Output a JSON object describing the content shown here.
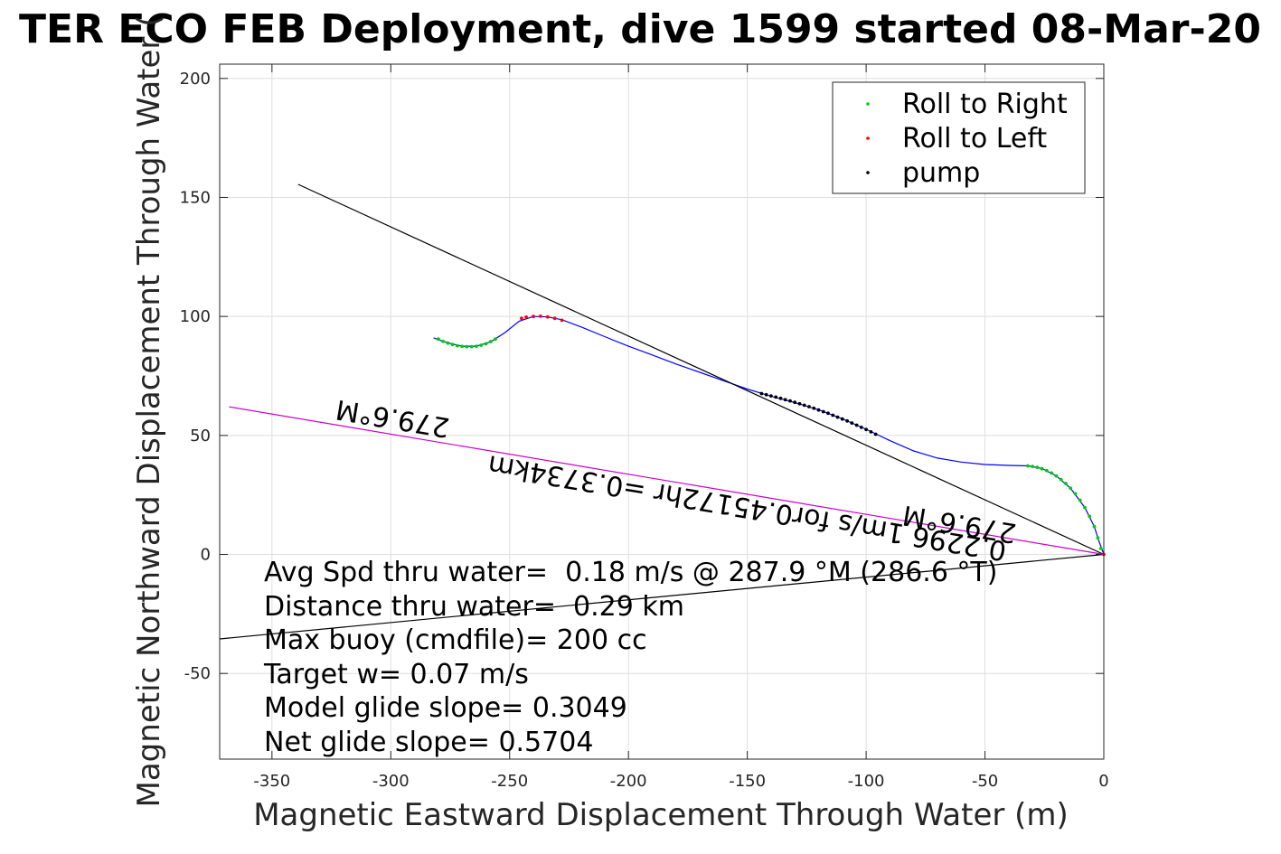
{
  "chart_data": {
    "type": "scatter",
    "title": "TER ECO FEB Deployment, dive 1599 started 08-Mar-20",
    "xlabel": "Magnetic Eastward Displacement Through Water (m)",
    "ylabel": "Magnetic Northward Displacement Through Water (",
    "xlim": [
      -372,
      0
    ],
    "ylim": [
      -86,
      206
    ],
    "xticks": [
      -350,
      -300,
      -250,
      -200,
      -150,
      -100,
      -50,
      0
    ],
    "yticks": [
      -50,
      0,
      50,
      100,
      150,
      200
    ],
    "grid": true,
    "legend_position": "top-right",
    "series": [
      {
        "name": "Roll to Right",
        "color": "#00cc00",
        "marker": "dot",
        "points": [
          [
            -280,
            90.5
          ],
          [
            -278,
            89.5
          ],
          [
            -276,
            88.8
          ],
          [
            -274,
            88.2
          ],
          [
            -272,
            87.7
          ],
          [
            -270,
            87.4
          ],
          [
            -268,
            87.3
          ],
          [
            -266,
            87.3
          ],
          [
            -264,
            87.5
          ],
          [
            -262,
            87.9
          ],
          [
            -260,
            88.5
          ],
          [
            -258,
            89.4
          ],
          [
            -256,
            90.5
          ],
          [
            -32,
            37.2
          ],
          [
            -30,
            37
          ],
          [
            -28,
            36.6
          ],
          [
            -26,
            36
          ],
          [
            -24,
            35.2
          ],
          [
            -22,
            34.2
          ],
          [
            -20,
            33
          ],
          [
            -18,
            31.5
          ],
          [
            -16,
            29.8
          ],
          [
            -14,
            27.8
          ],
          [
            -12,
            25.5
          ],
          [
            -10,
            22.8
          ],
          [
            -8,
            19.7
          ],
          [
            -6,
            16
          ],
          [
            -4,
            11.7
          ],
          [
            -2.5,
            7
          ],
          [
            -1.2,
            2.5
          ]
        ]
      },
      {
        "name": "Roll to Left",
        "color": "#ff0000",
        "marker": "dot",
        "points": [
          [
            -245,
            99.2
          ],
          [
            -243,
            99.7
          ],
          [
            -240,
            100
          ],
          [
            -237,
            100.1
          ],
          [
            -234,
            99.8
          ],
          [
            -231,
            99.2
          ],
          [
            -228,
            98.4
          ],
          [
            0,
            0
          ]
        ]
      },
      {
        "name": "pump",
        "color": "#000000",
        "marker": "dot",
        "points": [
          [
            -144,
            67.6
          ],
          [
            -142,
            67.1
          ],
          [
            -140,
            66.6
          ],
          [
            -138,
            66.1
          ],
          [
            -136,
            65.6
          ],
          [
            -134,
            65
          ],
          [
            -132,
            64.5
          ],
          [
            -130,
            63.9
          ],
          [
            -128,
            63.3
          ],
          [
            -126,
            62.7
          ],
          [
            -124,
            62.1
          ],
          [
            -122,
            61.4
          ],
          [
            -120,
            60.7
          ],
          [
            -118,
            60
          ],
          [
            -116,
            59.3
          ],
          [
            -114,
            58.5
          ],
          [
            -112,
            57.7
          ],
          [
            -110,
            56.9
          ],
          [
            -108,
            56.1
          ],
          [
            -106,
            55.2
          ],
          [
            -104,
            54.3
          ],
          [
            -102,
            53.4
          ],
          [
            -100,
            52.5
          ],
          [
            -98,
            51.5
          ],
          [
            -96,
            50.5
          ]
        ]
      }
    ],
    "lines": [
      {
        "role": "track",
        "color": "#0000ff",
        "points": [
          [
            -282,
            91
          ],
          [
            -276,
            88.9
          ],
          [
            -270,
            87.5
          ],
          [
            -264,
            87.5
          ],
          [
            -258,
            89.3
          ],
          [
            -252,
            93.2
          ],
          [
            -246,
            98
          ],
          [
            -240,
            100
          ],
          [
            -234,
            99.8
          ],
          [
            -228,
            98.6
          ],
          [
            -220,
            95.6
          ],
          [
            -210,
            91.5
          ],
          [
            -200,
            87.5
          ],
          [
            -190,
            83.8
          ],
          [
            -180,
            80
          ],
          [
            -170,
            76.5
          ],
          [
            -160,
            73
          ],
          [
            -150,
            69.5
          ],
          [
            -140,
            66.5
          ],
          [
            -130,
            63.8
          ],
          [
            -120,
            60.8
          ],
          [
            -110,
            57
          ],
          [
            -100,
            52.6
          ],
          [
            -90,
            47.8
          ],
          [
            -80,
            43.5
          ],
          [
            -70,
            40.5
          ],
          [
            -60,
            38.8
          ],
          [
            -50,
            37.8
          ],
          [
            -40,
            37.4
          ],
          [
            -32,
            37.2
          ],
          [
            -26,
            36.1
          ],
          [
            -20,
            33
          ],
          [
            -14,
            27.8
          ],
          [
            -8,
            19.7
          ],
          [
            -4,
            11.7
          ],
          [
            -2,
            5.5
          ],
          [
            0,
            0
          ]
        ]
      },
      {
        "role": "heading",
        "color": "#000000",
        "points": [
          [
            -339,
            155.5
          ],
          [
            0,
            0
          ]
        ]
      },
      {
        "role": "heading",
        "color": "#000000",
        "points": [
          [
            -372,
            -35.5
          ],
          [
            0,
            0
          ]
        ]
      },
      {
        "role": "drift",
        "color": "#cc00cc",
        "points": [
          [
            -368,
            62
          ],
          [
            0,
            0
          ]
        ]
      }
    ]
  },
  "legend": {
    "items": [
      {
        "label": "Roll to Right",
        "color": "#00cc00"
      },
      {
        "label": "Roll to Left",
        "color": "#ff0000"
      },
      {
        "label": "pump",
        "color": "#000000"
      }
    ]
  },
  "annotations": {
    "heading_upper": "279.6°M",
    "heading_lower": "279.6°M",
    "drift_text": "0.2296 1m/s for0.45172hr =0.3734km"
  },
  "stats": [
    "Avg Spd thru water=  0.18 m/s @ 287.9 °M (286.6 °T)",
    "Distance thru water=  0.29 km",
    "Max buoy (cmdfile)= 200 cc",
    "Target w= 0.07 m/s",
    "Model glide slope= 0.3049",
    "Net glide slope= 0.5704"
  ]
}
